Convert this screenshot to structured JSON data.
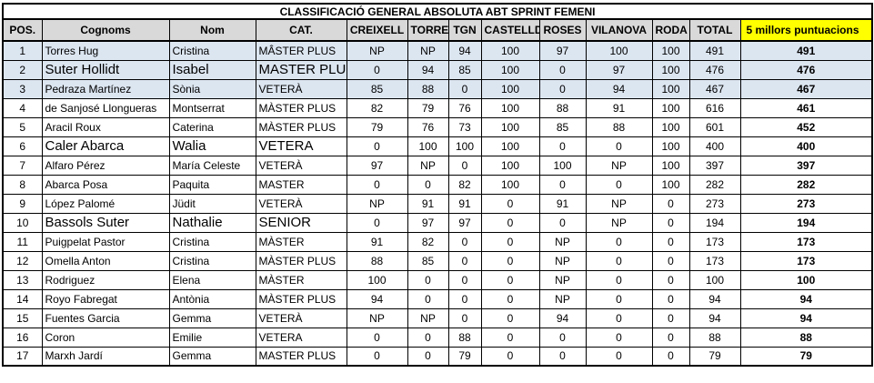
{
  "title": "CLASSIFICACIÓ GENERAL ABSOLUTA ABT SPRINT FEMENI",
  "columns": [
    "POS.",
    "Cognoms",
    "Nom",
    "CAT.",
    "CREIXELL",
    "TORRE",
    "TGN",
    "CASTELLD.",
    "ROSES",
    "VILANOVA",
    "RODA",
    "TOTAL",
    "5 millors puntuacions"
  ],
  "colors": {
    "header_bg": "#d9d9d9",
    "highlight_row_bg": "#dce6f1",
    "best5_header_bg": "#ffff00",
    "border": "#000000"
  },
  "table": {
    "rows": [
      {
        "pos": "1",
        "cognoms": "Torres Hug",
        "nom": "Cristina",
        "cat": "MÂSTER PLUS",
        "scores": [
          "NP",
          "NP",
          "94",
          "100",
          "97",
          "100",
          "100"
        ],
        "total": "491",
        "best5": "491",
        "highlight": true,
        "large": false
      },
      {
        "pos": "2",
        "cognoms": "Suter Hollidt",
        "nom": "Isabel",
        "cat": "MASTER PLUS",
        "scores": [
          "0",
          "94",
          "85",
          "100",
          "0",
          "97",
          "100"
        ],
        "total": "476",
        "best5": "476",
        "highlight": true,
        "large": true
      },
      {
        "pos": "3",
        "cognoms": "Pedraza Martínez",
        "nom": "Sònia",
        "cat": "VETERÀ",
        "scores": [
          "85",
          "88",
          "0",
          "100",
          "0",
          "94",
          "100"
        ],
        "total": "467",
        "best5": "467",
        "highlight": true,
        "large": false
      },
      {
        "pos": "4",
        "cognoms": "de Sanjosé Llongueras",
        "nom": "Montserrat",
        "cat": "MÀSTER PLUS",
        "scores": [
          "82",
          "79",
          "76",
          "100",
          "88",
          "91",
          "100"
        ],
        "total": "616",
        "best5": "461",
        "highlight": false,
        "large": false
      },
      {
        "pos": "5",
        "cognoms": "Aracil Roux",
        "nom": "Caterina",
        "cat": "MÀSTER PLUS",
        "scores": [
          "79",
          "76",
          "73",
          "100",
          "85",
          "88",
          "100"
        ],
        "total": "601",
        "best5": "452",
        "highlight": false,
        "large": false
      },
      {
        "pos": "6",
        "cognoms": "Caler Abarca",
        "nom": "Walia",
        "cat": "VETERA",
        "scores": [
          "0",
          "100",
          "100",
          "100",
          "0",
          "0",
          "100"
        ],
        "total": "400",
        "best5": "400",
        "highlight": false,
        "large": true
      },
      {
        "pos": "7",
        "cognoms": "Alfaro Pérez",
        "nom": "María Celeste",
        "cat": "VETERÀ",
        "scores": [
          "97",
          "NP",
          "0",
          "100",
          "100",
          "NP",
          "100"
        ],
        "total": "397",
        "best5": "397",
        "highlight": false,
        "large": false
      },
      {
        "pos": "8",
        "cognoms": "Abarca Posa",
        "nom": "Paquita",
        "cat": "MASTER",
        "scores": [
          "0",
          "0",
          "82",
          "100",
          "0",
          "0",
          "100"
        ],
        "total": "282",
        "best5": "282",
        "highlight": false,
        "large": false
      },
      {
        "pos": "9",
        "cognoms": "López Palomé",
        "nom": "Jüdit",
        "cat": "VETERÀ",
        "scores": [
          "NP",
          "91",
          "91",
          "0",
          "91",
          "NP",
          "0"
        ],
        "total": "273",
        "best5": "273",
        "highlight": false,
        "large": false
      },
      {
        "pos": "10",
        "cognoms": "Bassols Suter",
        "nom": "Nathalie",
        "cat": "SENIOR",
        "scores": [
          "0",
          "97",
          "97",
          "0",
          "0",
          "NP",
          "0"
        ],
        "total": "194",
        "best5": "194",
        "highlight": false,
        "large": true
      },
      {
        "pos": "11",
        "cognoms": "Puigpelat Pastor",
        "nom": "Cristina",
        "cat": "MÀSTER",
        "scores": [
          "91",
          "82",
          "0",
          "0",
          "NP",
          "0",
          "0"
        ],
        "total": "173",
        "best5": "173",
        "highlight": false,
        "large": false
      },
      {
        "pos": "12",
        "cognoms": "Omella Anton",
        "nom": "Cristina",
        "cat": "MÀSTER PLUS",
        "scores": [
          "88",
          "85",
          "0",
          "0",
          "NP",
          "0",
          "0"
        ],
        "total": "173",
        "best5": "173",
        "highlight": false,
        "large": false
      },
      {
        "pos": "13",
        "cognoms": "Rodriguez",
        "nom": "Elena",
        "cat": "MÀSTER",
        "scores": [
          "100",
          "0",
          "0",
          "0",
          "NP",
          "0",
          "0"
        ],
        "total": "100",
        "best5": "100",
        "highlight": false,
        "large": false
      },
      {
        "pos": "14",
        "cognoms": "Royo Fabregat",
        "nom": "Antònia",
        "cat": "MÀSTER PLUS",
        "scores": [
          "94",
          "0",
          "0",
          "0",
          "NP",
          "0",
          "0"
        ],
        "total": "94",
        "best5": "94",
        "highlight": false,
        "large": false
      },
      {
        "pos": "15",
        "cognoms": "Fuentes Garcia",
        "nom": "Gemma",
        "cat": "VETERÀ",
        "scores": [
          "NP",
          "NP",
          "0",
          "0",
          "94",
          "0",
          "0"
        ],
        "total": "94",
        "best5": "94",
        "highlight": false,
        "large": false
      },
      {
        "pos": "16",
        "cognoms": "Coron",
        "nom": "Emilie",
        "cat": "VETERA",
        "scores": [
          "0",
          "0",
          "88",
          "0",
          "0",
          "0",
          "0"
        ],
        "total": "88",
        "best5": "88",
        "highlight": false,
        "large": false
      },
      {
        "pos": "17",
        "cognoms": "Marxh Jardí",
        "nom": "Gemma",
        "cat": "MASTER PLUS",
        "scores": [
          "0",
          "0",
          "79",
          "0",
          "0",
          "0",
          "0"
        ],
        "total": "79",
        "best5": "79",
        "highlight": false,
        "large": false
      }
    ]
  }
}
